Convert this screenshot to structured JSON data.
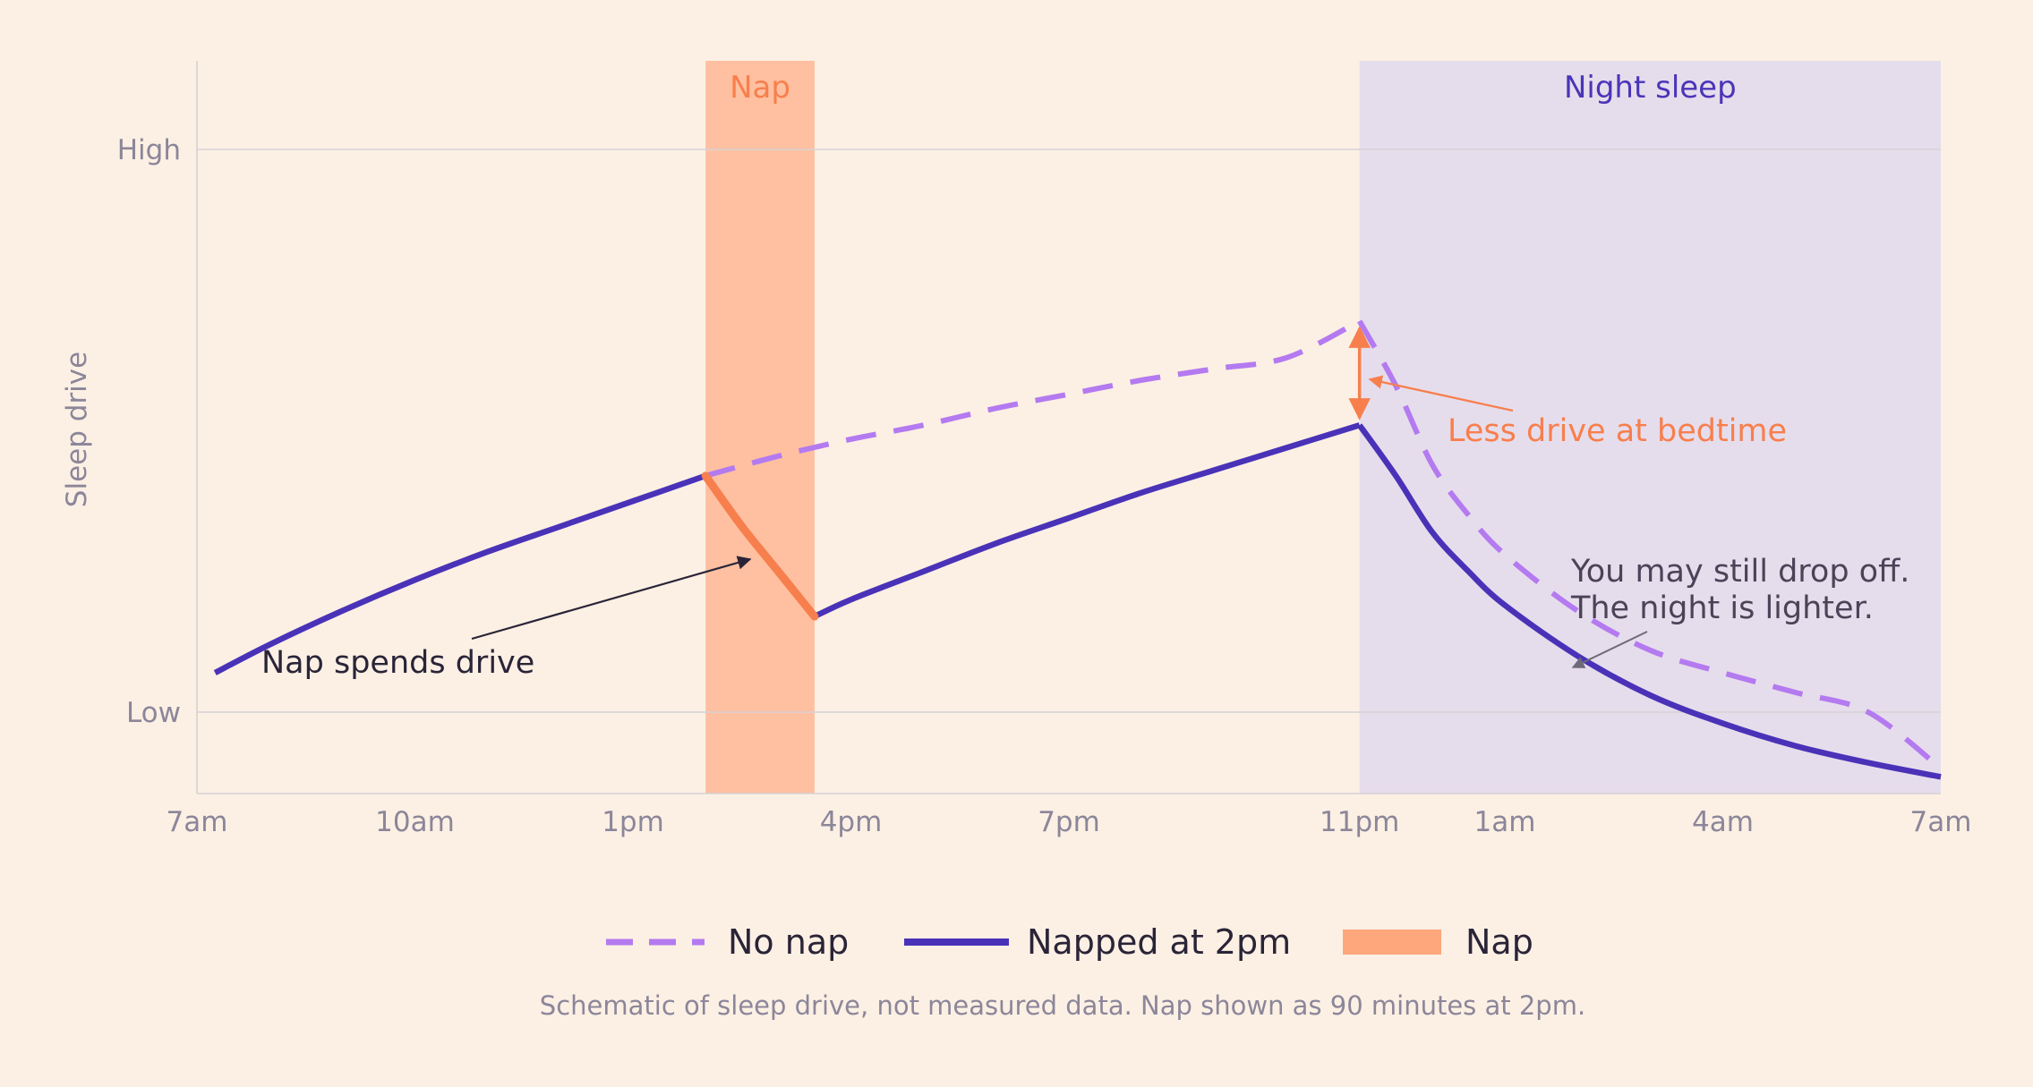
{
  "chart_data": {
    "type": "line",
    "ylabel": "Sleep drive",
    "xlabel": "",
    "x_ticks": [
      {
        "label": "7am",
        "hours": 0
      },
      {
        "label": "10am",
        "hours": 3
      },
      {
        "label": "1pm",
        "hours": 6
      },
      {
        "label": "4pm",
        "hours": 9
      },
      {
        "label": "7pm",
        "hours": 12
      },
      {
        "label": "11pm",
        "hours": 16
      },
      {
        "label": "1am",
        "hours": 18
      },
      {
        "label": "4am",
        "hours": 21
      },
      {
        "label": "7am",
        "hours": 24
      }
    ],
    "y_ticks": [
      {
        "label": "High",
        "value": 1
      },
      {
        "label": "Low",
        "value": 0
      }
    ],
    "bands": [
      {
        "label": "Nap",
        "x_start": 7,
        "x_end": 8.5,
        "color": "#fec0a0",
        "label_color": "#f77f4d"
      },
      {
        "label": "Night sleep",
        "x_start": 16,
        "x_end": 24,
        "color": "#e6ddec",
        "label_color": "#4a35b8"
      }
    ],
    "series": [
      {
        "name": "No nap",
        "style": "dashed",
        "color": "#b47af0",
        "x": [
          7,
          8,
          9,
          10,
          11,
          12,
          13,
          14,
          15,
          16,
          16.5,
          17,
          17.5,
          18,
          19,
          20,
          21,
          22,
          23,
          24
        ],
        "y": [
          0.42,
          0.455,
          0.485,
          0.51,
          0.54,
          0.565,
          0.59,
          0.61,
          0.63,
          0.695,
          0.58,
          0.44,
          0.35,
          0.28,
          0.18,
          0.11,
          0.07,
          0.035,
          0.0,
          -0.1
        ]
      },
      {
        "name": "Napped at 2pm",
        "style": "solid",
        "color": "#4a32b8",
        "x": [
          0.25,
          1,
          2,
          3,
          4,
          5,
          6,
          7,
          8.5,
          9,
          10,
          11,
          12,
          13,
          14,
          15,
          16,
          16.5,
          17,
          17.5,
          18,
          19,
          20,
          21,
          22,
          23,
          24
        ],
        "y": [
          0.07,
          0.12,
          0.18,
          0.235,
          0.285,
          0.33,
          0.375,
          0.42,
          0.17,
          0.2,
          0.25,
          0.3,
          0.345,
          0.39,
          0.43,
          0.47,
          0.51,
          0.42,
          0.32,
          0.25,
          0.19,
          0.1,
          0.03,
          -0.02,
          -0.06,
          -0.09,
          -0.115
        ]
      },
      {
        "name": "Nap",
        "style": "thick",
        "color": "#f77f4d",
        "x": [
          7,
          7.5,
          8,
          8.5
        ],
        "y": [
          0.42,
          0.33,
          0.25,
          0.17
        ]
      }
    ],
    "annotations": [
      {
        "text": "Nap spends drive",
        "color": "#2a2438"
      },
      {
        "text": "Less drive at bedtime",
        "color": "#f77f4d"
      },
      {
        "text_lines": [
          "You may still drop off.",
          "The night is lighter."
        ],
        "color": "#4a4458"
      }
    ],
    "legend": {
      "placement": "bottom-center",
      "entries": [
        {
          "label": "No nap",
          "kind": "dashed",
          "color": "#b47af0"
        },
        {
          "label": "Napped at 2pm",
          "kind": "solid",
          "color": "#4a32b8"
        },
        {
          "label": "Nap",
          "kind": "box",
          "color": "#fea77c"
        }
      ]
    },
    "xlim": [
      0,
      24
    ],
    "ylim": [
      -0.143,
      1.16
    ],
    "grid": {
      "horizontal": true,
      "vertical": false
    }
  },
  "footnote": "Schematic of sleep drive, not measured data. Nap shown as 90 minutes at 2pm."
}
